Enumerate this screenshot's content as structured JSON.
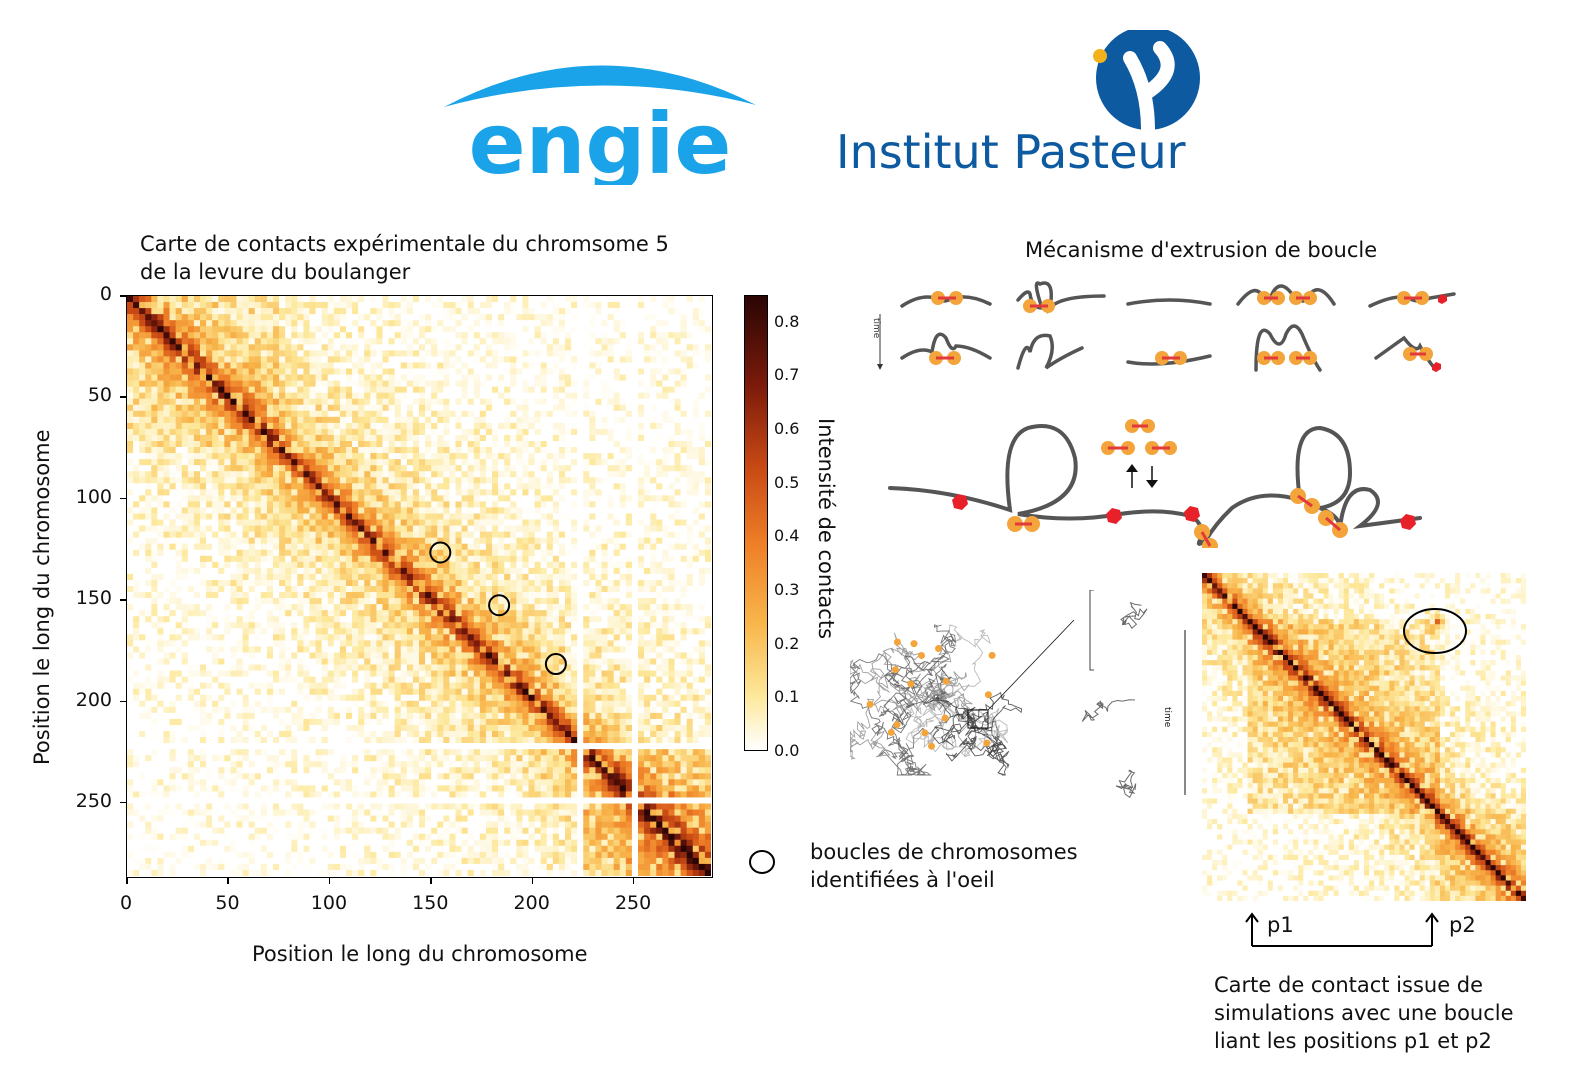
{
  "logos": {
    "engie": "engie",
    "pasteur": "Institut Pasteur"
  },
  "left_panel": {
    "title_line1": "Carte de contacts expérimentale du chromsome 5",
    "title_line2": "de la levure du boulanger",
    "xlabel": "Position le long du chromosome",
    "ylabel": "Position le long du chromosome",
    "xticks": [
      "0",
      "50",
      "100",
      "150",
      "200",
      "250"
    ],
    "yticks": [
      "0",
      "50",
      "100",
      "150",
      "200",
      "250"
    ],
    "colorbar_label": "Intensité de contacts",
    "colorbar_ticks": [
      "0.0",
      "0.1",
      "0.2",
      "0.3",
      "0.4",
      "0.5",
      "0.6",
      "0.7",
      "0.8"
    ]
  },
  "chart_data": {
    "type": "heatmap",
    "title": "Carte de contacts expérimentale du chromsome 5 de la levure du boulanger",
    "xlabel": "Position le long du chromosome",
    "ylabel": "Position le long du chromosome",
    "xlim": [
      0,
      288
    ],
    "ylim": [
      288,
      0
    ],
    "colorbar_range": [
      0.0,
      0.85
    ],
    "colorbar_label": "Intensité de contacts",
    "loops": [
      {
        "x": 155,
        "y": 127
      },
      {
        "x": 184,
        "y": 153
      },
      {
        "x": 212,
        "y": 182
      }
    ],
    "gaps": [
      223,
      248
    ]
  },
  "right_panel": {
    "mechanism_title": "Mécanisme d'extrusion de boucle",
    "time_label": "time",
    "time_label2": "time",
    "legend_text_line1": "boucles de chromosomes",
    "legend_text_line2": "identifiées à l'oeil",
    "p1": "p1",
    "p2": "p2",
    "sim_caption_line1": "Carte de contact issue de",
    "sim_caption_line2": "simulations  avec une boucle",
    "sim_caption_line3": "liant les positions p1 et p2"
  },
  "colors": {
    "engie_blue": "#1aa3e8",
    "pasteur_blue": "#0d5aa0",
    "pasteur_yellow": "#f3b21c",
    "cohesin_orange": "#f3a43a",
    "cohesin_red": "#e23a3a",
    "ctcf_red": "#e8202a",
    "polymer_gray": "#5a5a5a"
  }
}
